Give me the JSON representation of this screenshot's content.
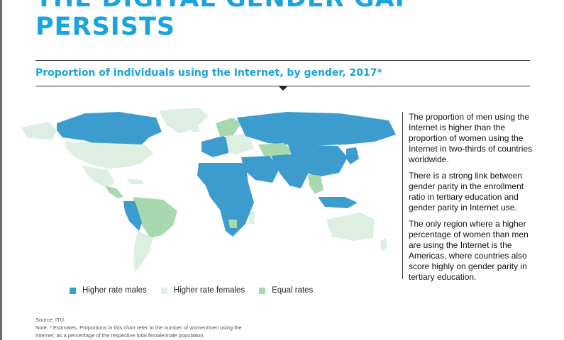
{
  "headline": {
    "line1": "THE DIGITAL GENDER GAP",
    "line2": "PERSISTS"
  },
  "subtitle": "Proportion of individuals using the Internet, by gender, 2017*",
  "sidebar": {
    "paragraphs": [
      "The proportion of men using the Internet is higher than the proportion of women using the Internet in two-thirds of countries worldwide.",
      "There is a strong link between gender parity in the enrollment ratio in tertiary education and gender parity in Internet use.",
      "The only region where a higher percentage of women than men are using the Internet is the Americas, where countries also score highly on gender parity in tertiary education."
    ]
  },
  "legend": [
    {
      "label": "Higher rate males",
      "color": "#3c9cce"
    },
    {
      "label": "Higher rate females",
      "color": "#dcefe2"
    },
    {
      "label": "Equal rates",
      "color": "#a8d8b0"
    }
  ],
  "source": {
    "line1": "Source: ITU.",
    "line2": "Note: * Estimates. Proportions in this chart refer to the number of women/men using the",
    "line3": "Internet, as a percentage of the respective total female/male population."
  },
  "colors": {
    "accent": "#1aa3dd",
    "males": "#3c9cce",
    "females": "#dcefe2",
    "equal": "#a8d8b0"
  }
}
